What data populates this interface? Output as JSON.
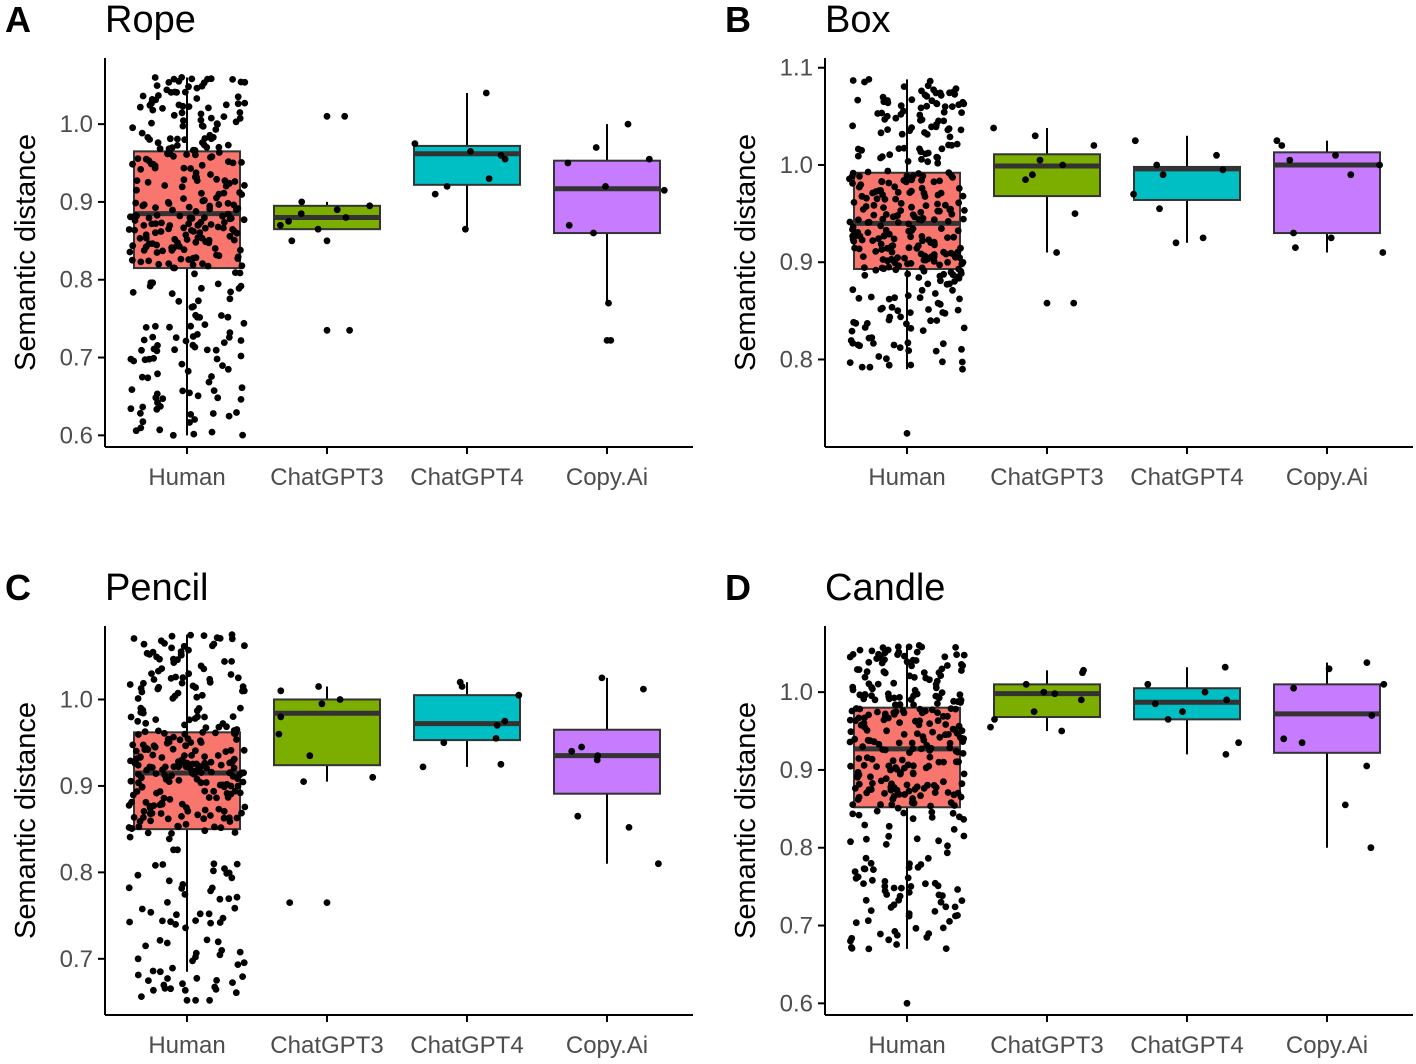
{
  "groups": [
    "Human",
    "ChatGPT3",
    "ChatGPT4",
    "Copy.Ai"
  ],
  "colors": {
    "Human": "#F8766D",
    "ChatGPT3": "#7CAE00",
    "ChatGPT4": "#00BFC4",
    "Copy.Ai": "#C77CFF"
  },
  "chart_data": [
    {
      "type": "boxplot",
      "panel_letter": "A",
      "title": "Rope",
      "ylabel": "Semantic distance",
      "ylim": [
        0.585,
        1.085
      ],
      "yticks": [
        0.6,
        0.7,
        0.8,
        0.9,
        1.0
      ],
      "ytick_labels": [
        "0.6",
        "0.7",
        "0.8",
        "0.9",
        "1.0"
      ],
      "boxes": [
        {
          "group": "Human",
          "whisker_low": 0.6,
          "q1": 0.815,
          "median": 0.885,
          "q3": 0.965,
          "whisker_high": 1.06
        },
        {
          "group": "ChatGPT3",
          "whisker_low": 0.865,
          "q1": 0.865,
          "median": 0.88,
          "q3": 0.895,
          "whisker_high": 0.9
        },
        {
          "group": "ChatGPT4",
          "whisker_low": 0.865,
          "q1": 0.922,
          "median": 0.962,
          "q3": 0.972,
          "whisker_high": 1.04
        },
        {
          "group": "Copy.Ai",
          "whisker_low": 0.77,
          "q1": 0.86,
          "median": 0.917,
          "q3": 0.953,
          "whisker_high": 1.0
        }
      ],
      "outliers": [
        {
          "group": "ChatGPT3",
          "values": [
            1.01,
            0.735,
            0.85
          ]
        },
        {
          "group": "Copy.Ai",
          "values": [
            0.722
          ]
        }
      ],
      "points": [
        {
          "group": "Human",
          "n": 330,
          "min": 0.6,
          "max": 1.06,
          "q1": 0.815,
          "median": 0.885,
          "q3": 0.965
        },
        {
          "group": "ChatGPT3",
          "values": [
            1.01,
            0.735,
            0.85,
            0.865,
            0.875,
            0.88,
            0.885,
            0.89,
            0.895,
            0.9,
            0.87
          ]
        },
        {
          "group": "ChatGPT4",
          "values": [
            1.04,
            0.975,
            0.965,
            0.96,
            0.955,
            0.92,
            0.91,
            0.865,
            0.93
          ]
        },
        {
          "group": "Copy.Ai",
          "values": [
            1.0,
            0.97,
            0.955,
            0.95,
            0.92,
            0.915,
            0.87,
            0.86,
            0.77,
            0.722
          ]
        }
      ]
    },
    {
      "type": "boxplot",
      "panel_letter": "B",
      "title": "Box",
      "ylabel": "Semantic distance",
      "ylim": [
        0.71,
        1.11
      ],
      "yticks": [
        0.8,
        0.9,
        1.0,
        1.1
      ],
      "ytick_labels": [
        "0.8",
        "0.9",
        "1.0",
        "1.1"
      ],
      "boxes": [
        {
          "group": "Human",
          "whisker_low": 0.79,
          "q1": 0.893,
          "median": 0.94,
          "q3": 0.992,
          "whisker_high": 1.088
        },
        {
          "group": "ChatGPT3",
          "whisker_low": 0.91,
          "q1": 0.968,
          "median": 0.999,
          "q3": 1.011,
          "whisker_high": 1.038
        },
        {
          "group": "ChatGPT4",
          "whisker_low": 0.92,
          "q1": 0.964,
          "median": 0.996,
          "q3": 0.998,
          "whisker_high": 1.03
        },
        {
          "group": "Copy.Ai",
          "whisker_low": 0.91,
          "q1": 0.93,
          "median": 1.0,
          "q3": 1.013,
          "whisker_high": 1.025
        }
      ],
      "outliers": [
        {
          "group": "Human",
          "values": [
            0.724
          ]
        },
        {
          "group": "ChatGPT3",
          "values": [
            0.858
          ]
        }
      ],
      "points": [
        {
          "group": "Human",
          "n": 330,
          "min": 0.79,
          "max": 1.088,
          "q1": 0.893,
          "median": 0.94,
          "q3": 0.992
        },
        {
          "group": "ChatGPT3",
          "values": [
            1.038,
            1.03,
            1.02,
            1.005,
            1.0,
            0.99,
            0.985,
            0.95,
            0.91,
            0.858
          ]
        },
        {
          "group": "ChatGPT4",
          "values": [
            1.025,
            1.01,
            1.0,
            0.995,
            0.99,
            0.97,
            0.955,
            0.925,
            0.92
          ]
        },
        {
          "group": "Copy.Ai",
          "values": [
            1.025,
            1.02,
            1.01,
            1.005,
            1.0,
            0.99,
            0.93,
            0.925,
            0.915,
            0.91
          ]
        }
      ]
    },
    {
      "type": "boxplot",
      "panel_letter": "C",
      "title": "Pencil",
      "ylabel": "Semantic distance",
      "ylim": [
        0.635,
        1.085
      ],
      "yticks": [
        0.7,
        0.8,
        0.9,
        1.0
      ],
      "ytick_labels": [
        "0.7",
        "0.8",
        "0.9",
        "1.0"
      ],
      "boxes": [
        {
          "group": "Human",
          "whisker_low": 0.685,
          "q1": 0.85,
          "median": 0.915,
          "q3": 0.962,
          "whisker_high": 1.075
        },
        {
          "group": "ChatGPT3",
          "whisker_low": 0.905,
          "q1": 0.924,
          "median": 0.984,
          "q3": 1.0,
          "whisker_high": 1.015
        },
        {
          "group": "ChatGPT4",
          "whisker_low": 0.922,
          "q1": 0.953,
          "median": 0.972,
          "q3": 1.005,
          "whisker_high": 1.02
        },
        {
          "group": "Copy.Ai",
          "whisker_low": 0.81,
          "q1": 0.891,
          "median": 0.935,
          "q3": 0.965,
          "whisker_high": 1.025
        }
      ],
      "outliers": [
        {
          "group": "Human",
          "values": [
            0.652
          ]
        },
        {
          "group": "ChatGPT3",
          "values": [
            0.765
          ]
        }
      ],
      "points": [
        {
          "group": "Human",
          "n": 330,
          "min": 0.652,
          "max": 1.075,
          "q1": 0.85,
          "median": 0.915,
          "q3": 0.962
        },
        {
          "group": "ChatGPT3",
          "values": [
            1.015,
            1.01,
            1.0,
            0.995,
            0.98,
            0.96,
            0.935,
            0.91,
            0.905,
            0.765
          ]
        },
        {
          "group": "ChatGPT4",
          "values": [
            1.02,
            1.015,
            1.005,
            0.975,
            0.97,
            0.955,
            0.95,
            0.925,
            0.922
          ]
        },
        {
          "group": "Copy.Ai",
          "values": [
            1.025,
            1.012,
            0.945,
            0.94,
            0.935,
            0.93,
            0.865,
            0.852,
            0.81
          ]
        }
      ]
    },
    {
      "type": "boxplot",
      "panel_letter": "D",
      "title": "Candle",
      "ylabel": "Semantic distance",
      "ylim": [
        0.585,
        1.085
      ],
      "yticks": [
        0.6,
        0.7,
        0.8,
        0.9,
        1.0
      ],
      "ytick_labels": [
        "0.6",
        "0.7",
        "0.8",
        "0.9",
        "1.0"
      ],
      "boxes": [
        {
          "group": "Human",
          "whisker_low": 0.67,
          "q1": 0.852,
          "median": 0.927,
          "q3": 0.98,
          "whisker_high": 1.06
        },
        {
          "group": "ChatGPT3",
          "whisker_low": 0.95,
          "q1": 0.968,
          "median": 0.998,
          "q3": 1.01,
          "whisker_high": 1.028
        },
        {
          "group": "ChatGPT4",
          "whisker_low": 0.92,
          "q1": 0.965,
          "median": 0.987,
          "q3": 1.005,
          "whisker_high": 1.032
        },
        {
          "group": "Copy.Ai",
          "whisker_low": 0.8,
          "q1": 0.922,
          "median": 0.972,
          "q3": 1.01,
          "whisker_high": 1.038
        }
      ],
      "outliers": [
        {
          "group": "Human",
          "values": [
            0.6
          ]
        }
      ],
      "points": [
        {
          "group": "Human",
          "n": 330,
          "min": 0.67,
          "max": 1.06,
          "q1": 0.852,
          "median": 0.927,
          "q3": 0.98
        },
        {
          "group": "ChatGPT3",
          "values": [
            1.028,
            1.025,
            1.01,
            1.0,
            0.998,
            0.99,
            0.975,
            0.965,
            0.955,
            0.95
          ]
        },
        {
          "group": "ChatGPT4",
          "values": [
            1.032,
            1.01,
            1.0,
            0.99,
            0.985,
            0.975,
            0.965,
            0.935,
            0.92
          ]
        },
        {
          "group": "Copy.Ai",
          "values": [
            1.038,
            1.03,
            1.01,
            1.005,
            0.97,
            0.94,
            0.935,
            0.905,
            0.855,
            0.8
          ]
        }
      ]
    }
  ]
}
